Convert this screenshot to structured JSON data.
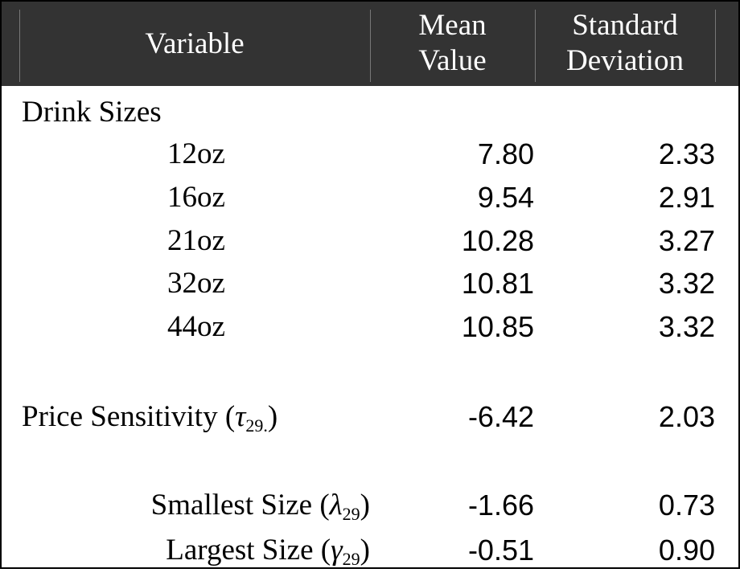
{
  "header": {
    "columns": [
      {
        "lines": [
          "Variable"
        ]
      },
      {
        "lines": [
          "Mean",
          "Value"
        ]
      },
      {
        "lines": [
          "Standard",
          "Deviation"
        ]
      }
    ]
  },
  "rows": [
    {
      "label": "Drink Sizes"
    },
    {
      "label": "12oz",
      "mean": "7.80",
      "sd": "2.33"
    },
    {
      "label": "16oz",
      "mean": "9.54",
      "sd": "2.91"
    },
    {
      "label": "21oz",
      "mean": "10.28",
      "sd": "3.27"
    },
    {
      "label": "32oz",
      "mean": "10.81",
      "sd": "3.32"
    },
    {
      "label": "44oz",
      "mean": "10.85",
      "sd": "3.32"
    },
    {
      "label": "Price Sensitivity (",
      "symbol": "τ",
      "sub": "29.",
      "close": ")",
      "mean": "-6.42",
      "sd": "2.03"
    },
    {
      "label": "Smallest Size (",
      "symbol": "λ",
      "sub": "29",
      "close": ")",
      "mean": "-1.66",
      "sd": "0.73"
    },
    {
      "label": "Largest Size (",
      "symbol": "γ",
      "sub": "29",
      "close": ")",
      "mean": "-0.51",
      "sd": "0.90"
    }
  ]
}
